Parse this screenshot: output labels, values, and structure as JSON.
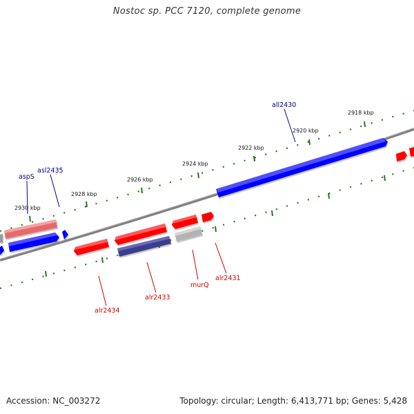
{
  "title": "Nostoc sp. PCC 7120, complete genome",
  "footer": {
    "accession": "Accession: NC_003272",
    "summary": "Topology: circular; Length: 6,413,771 bp; Genes: 5,428"
  },
  "colors": {
    "forward_gene": "#ff0000",
    "reverse_gene": "#0000ff",
    "tick": "#1a7a1a",
    "backbone": "#808080",
    "forward_label": "#cc0000",
    "reverse_label": "#00008b"
  },
  "kbp_labels": [
    "2918 kbp",
    "2920 kbp",
    "2922 kbp",
    "2924 kbp",
    "2926 kbp",
    "2928 kbp",
    "2930 kbp"
  ],
  "gene_labels": {
    "all2430": "all2430",
    "asl2435": "asl2435",
    "aspS": "aspS",
    "alr2434": "alr2434",
    "alr2433": "alr2433",
    "murQ": "murQ",
    "alr2431": "alr2431"
  }
}
